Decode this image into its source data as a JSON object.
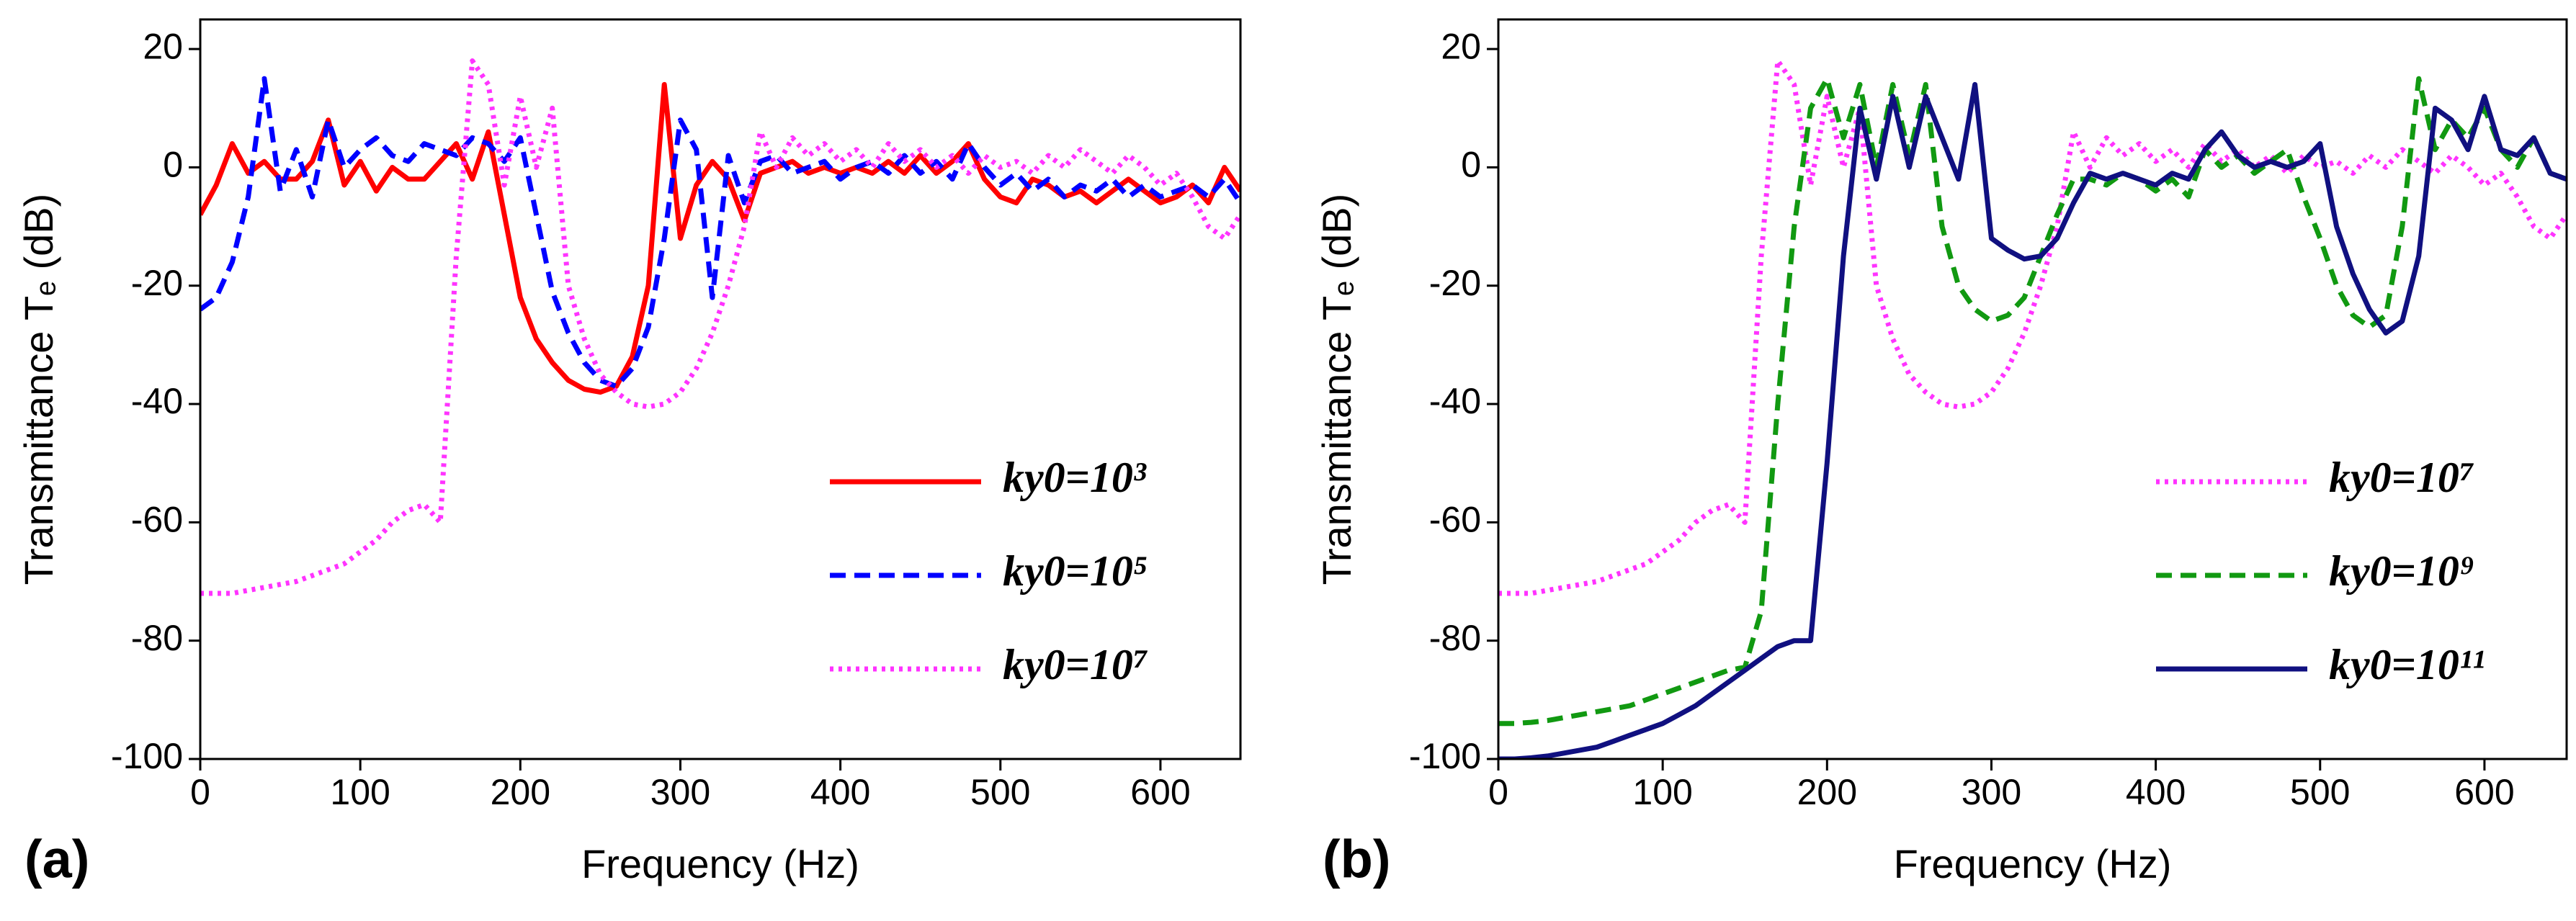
{
  "chart_data": [
    {
      "type": "line",
      "panel_label": "(a)",
      "xlabel": "Frequency (Hz)",
      "ylabel": "Transmittance Tₑ (dB)",
      "xlim": [
        0,
        650
      ],
      "ylim": [
        -100,
        25
      ],
      "xticks": [
        0,
        100,
        200,
        300,
        400,
        500,
        600
      ],
      "yticks": [
        -100,
        -80,
        -60,
        -40,
        -20,
        0,
        20
      ],
      "legend": "lower right",
      "x": [
        0,
        10,
        20,
        30,
        40,
        50,
        60,
        70,
        80,
        90,
        100,
        110,
        120,
        130,
        140,
        150,
        160,
        170,
        180,
        190,
        200,
        210,
        220,
        230,
        240,
        250,
        260,
        270,
        280,
        290,
        300,
        310,
        320,
        330,
        340,
        350,
        360,
        370,
        380,
        390,
        400,
        410,
        420,
        430,
        440,
        450,
        460,
        470,
        480,
        490,
        500,
        510,
        520,
        530,
        540,
        550,
        560,
        570,
        580,
        590,
        600,
        610,
        620,
        630,
        640,
        650
      ],
      "series": [
        {
          "name": "ky0=10³",
          "color": "#ff0000",
          "linestyle": "solid",
          "values": [
            -8,
            -3,
            4,
            -1,
            1,
            -2,
            -2,
            1,
            8,
            -3,
            1,
            -4,
            0,
            -2,
            -2,
            1,
            4,
            -2,
            6,
            -8,
            -22,
            -29,
            -33,
            -36,
            -37.5,
            -38,
            -37,
            -32,
            -20,
            14,
            -12,
            -3,
            1,
            -2,
            -9,
            -1,
            0,
            1,
            -1,
            0,
            -1,
            0,
            -1,
            1,
            -1,
            2,
            -1,
            1,
            4,
            -2,
            -5,
            -6,
            -2,
            -3,
            -5,
            -4,
            -6,
            -4,
            -2,
            -4,
            -6,
            -5,
            -3,
            -6,
            0,
            -4
          ]
        },
        {
          "name": "ky0=10⁵",
          "color": "#0000ff",
          "linestyle": "dashed",
          "values": [
            -24,
            -22,
            -16,
            -5,
            15,
            -4,
            3,
            -5,
            8,
            0,
            3,
            5,
            2,
            1,
            4,
            3,
            2,
            5,
            4,
            1,
            5,
            -8,
            -21,
            -28,
            -33,
            -36,
            -37,
            -34,
            -27,
            -12,
            8,
            3,
            -22,
            2,
            -6,
            1,
            2,
            -1,
            0,
            1,
            -2,
            0,
            1,
            -1,
            2,
            -1,
            1,
            -2,
            4,
            0,
            -3,
            -1,
            -4,
            -2,
            -5,
            -3,
            -4,
            -2,
            -5,
            -3,
            -5,
            -4,
            -3,
            -5,
            -2,
            -6
          ]
        },
        {
          "name": "ky0=10⁷",
          "color": "#ff33ff",
          "linestyle": "dotted",
          "values": [
            -72,
            -72,
            -72,
            -71.5,
            -71,
            -70.5,
            -70,
            -69,
            -68,
            -67,
            -65,
            -63,
            -60,
            -58,
            -57,
            -60,
            -15,
            18,
            14,
            -3,
            12,
            0,
            10,
            -20,
            -29,
            -35,
            -38,
            -40,
            -40.5,
            -40,
            -38,
            -34,
            -28,
            -20,
            -10,
            6,
            0,
            5,
            2,
            4,
            1,
            3,
            0,
            4,
            1,
            3,
            0,
            2,
            -1,
            2,
            0,
            1,
            -1,
            2,
            0,
            3,
            1,
            -1,
            2,
            0,
            -3,
            -1,
            -5,
            -10,
            -12,
            -8
          ]
        }
      ]
    },
    {
      "type": "line",
      "panel_label": "(b)",
      "xlabel": "Frequency (Hz)",
      "ylabel": "Transmittance Tₑ (dB)",
      "xlim": [
        0,
        650
      ],
      "ylim": [
        -100,
        25
      ],
      "xticks": [
        0,
        100,
        200,
        300,
        400,
        500,
        600
      ],
      "yticks": [
        -100,
        -80,
        -60,
        -40,
        -20,
        0,
        20
      ],
      "legend": "lower right",
      "x": [
        0,
        10,
        20,
        30,
        40,
        50,
        60,
        70,
        80,
        90,
        100,
        110,
        120,
        130,
        140,
        150,
        160,
        170,
        180,
        190,
        200,
        210,
        220,
        230,
        240,
        250,
        260,
        270,
        280,
        290,
        300,
        310,
        320,
        330,
        340,
        350,
        360,
        370,
        380,
        390,
        400,
        410,
        420,
        430,
        440,
        450,
        460,
        470,
        480,
        490,
        500,
        510,
        520,
        530,
        540,
        550,
        560,
        570,
        580,
        590,
        600,
        610,
        620,
        630,
        640,
        650
      ],
      "series": [
        {
          "name": "ky0=10⁷",
          "color": "#ff33ff",
          "linestyle": "dotted",
          "values": [
            -72,
            -72,
            -72,
            -71.5,
            -71,
            -70.5,
            -70,
            -69,
            -68,
            -67,
            -65,
            -63,
            -60,
            -58,
            -57,
            -60,
            -15,
            18,
            14,
            -3,
            12,
            0,
            10,
            -20,
            -29,
            -35,
            -38,
            -40,
            -40.5,
            -40,
            -38,
            -34,
            -28,
            -20,
            -10,
            6,
            0,
            5,
            2,
            4,
            1,
            3,
            0,
            4,
            1,
            3,
            0,
            2,
            -1,
            2,
            0,
            1,
            -1,
            2,
            0,
            3,
            1,
            -1,
            2,
            0,
            -3,
            -1,
            -5,
            -10,
            -12,
            -8
          ]
        },
        {
          "name": "ky0=10⁹",
          "color": "#119911",
          "linestyle": "dashed",
          "values": [
            -94,
            -94,
            -93.8,
            -93.5,
            -93,
            -92.5,
            -92,
            -91.5,
            -91,
            -90,
            -89,
            -88,
            -87,
            -86,
            -85,
            -84.5,
            -75,
            -40,
            -10,
            10,
            15,
            5,
            14,
            0,
            14,
            2,
            14,
            -10,
            -20,
            -24,
            -26,
            -25,
            -22,
            -15,
            -8,
            -2,
            -2,
            -3,
            -1,
            -2,
            -4,
            -2,
            -5,
            3,
            0,
            2,
            -1,
            1,
            3,
            -5,
            -12,
            -20,
            -25,
            -27,
            -25,
            -10,
            15,
            3,
            8,
            5,
            10,
            3,
            0,
            5,
            -1,
            -2
          ]
        },
        {
          "name": "ky0=10¹¹",
          "color": "#101080",
          "linestyle": "solid",
          "values": [
            -100,
            -100,
            -99.8,
            -99.5,
            -99,
            -98.5,
            -98,
            -97,
            -96,
            -95,
            -94,
            -92.5,
            -91,
            -89,
            -87,
            -85,
            -83,
            -81,
            -80,
            -80,
            -50,
            -15,
            10,
            -2,
            12,
            0,
            12,
            5,
            -2,
            14,
            -12,
            -14,
            -15.5,
            -15,
            -12,
            -6,
            -1,
            -2,
            -1,
            -2,
            -3,
            -1,
            -2,
            3,
            6,
            2,
            0,
            1,
            0,
            1,
            4,
            -10,
            -18,
            -24,
            -28,
            -26,
            -15,
            10,
            8,
            3,
            12,
            3,
            2,
            5,
            -1,
            -2
          ]
        }
      ]
    }
  ]
}
